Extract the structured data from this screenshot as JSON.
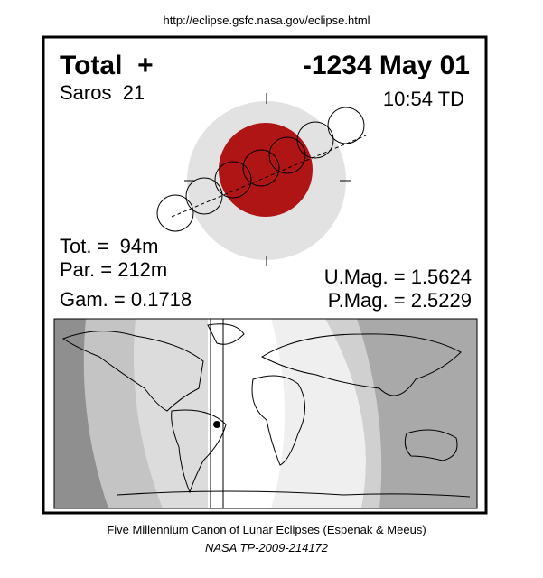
{
  "header": {
    "url": "http://eclipse.gsfc.nasa.gov/eclipse.html"
  },
  "eclipse": {
    "type": "Total  +",
    "date": "-1234 May 01",
    "saros": "Saros  21",
    "time": "10:54 TD",
    "tot": "Tot. =  94m",
    "par": "Par. = 212m",
    "gam": "Gam. = 0.1718",
    "umag": "U.Mag. = 1.5624",
    "pmag": "P.Mag. = 2.5229"
  },
  "footer": {
    "line1": "Five Millennium Canon of Lunar Eclipses (Espenak & Meeus)",
    "line2": "NASA TP-2009-214172"
  }
}
